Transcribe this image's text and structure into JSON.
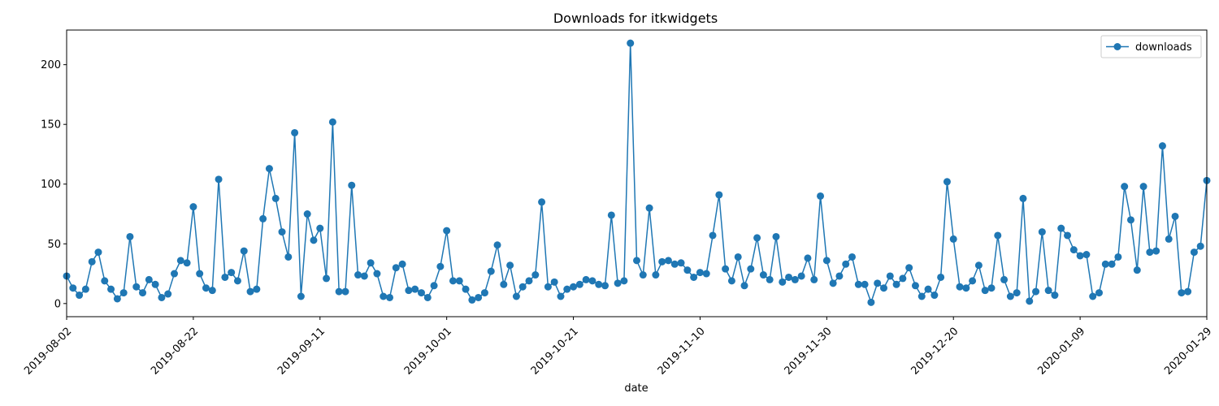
{
  "chart_data": {
    "type": "line",
    "title": "Downloads for itkwidgets",
    "xlabel": "date",
    "ylabel": "",
    "x_start": "2019-08-02",
    "x_end": "2020-01-29",
    "xlim": [
      "2019-08-02",
      "2020-01-29"
    ],
    "ylim": [
      -11,
      229
    ],
    "yticks": [
      0,
      50,
      100,
      150,
      200
    ],
    "xticks": [
      "2019-08-02",
      "2019-08-22",
      "2019-09-11",
      "2019-10-01",
      "2019-10-21",
      "2019-11-10",
      "2019-11-30",
      "2019-12-20",
      "2020-01-09",
      "2020-01-29"
    ],
    "grid": false,
    "legend_position": "top-right",
    "series": [
      {
        "name": "downloads",
        "color": "#1f77b4",
        "marker": "circle",
        "values": [
          23,
          13,
          7,
          12,
          35,
          43,
          19,
          12,
          4,
          9,
          56,
          14,
          9,
          20,
          16,
          5,
          8,
          25,
          36,
          34,
          81,
          25,
          13,
          11,
          104,
          22,
          26,
          19,
          44,
          10,
          12,
          71,
          113,
          88,
          60,
          39,
          143,
          6,
          75,
          53,
          63,
          21,
          152,
          10,
          10,
          99,
          24,
          23,
          34,
          25,
          6,
          5,
          30,
          33,
          11,
          12,
          9,
          5,
          15,
          31,
          61,
          19,
          19,
          12,
          3,
          5,
          9,
          27,
          49,
          16,
          32,
          6,
          14,
          19,
          24,
          85,
          14,
          18,
          6,
          12,
          14,
          16,
          20,
          19,
          16,
          15,
          74,
          17,
          19,
          218,
          36,
          24,
          80,
          24,
          35,
          36,
          33,
          34,
          28,
          22,
          26,
          25,
          57,
          91,
          29,
          19,
          39,
          15,
          29,
          55,
          24,
          20,
          56,
          18,
          22,
          20,
          23,
          38,
          20,
          90,
          36,
          17,
          23,
          33,
          39,
          16,
          16,
          1,
          17,
          13,
          23,
          16,
          21,
          30,
          15,
          6,
          12,
          7,
          22,
          102,
          54,
          14,
          13,
          19,
          32,
          11,
          13,
          57,
          20,
          6,
          9,
          88,
          2,
          10,
          60,
          11,
          7,
          63,
          57,
          45,
          40,
          41,
          6,
          9,
          33,
          33,
          39,
          98,
          70,
          28,
          98,
          43,
          44,
          132,
          54,
          73,
          9,
          10,
          43,
          48,
          103
        ]
      }
    ]
  }
}
